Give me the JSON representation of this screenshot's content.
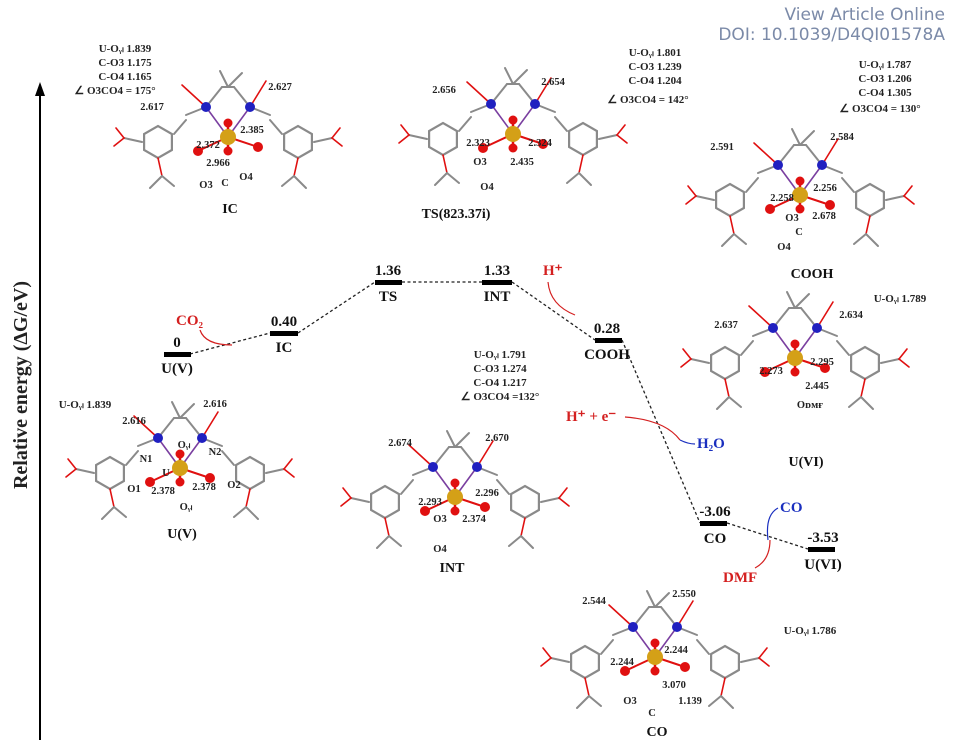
{
  "axis": {
    "ylabel": "Relative energy (ΔG/eV)"
  },
  "watermark": {
    "line1": "View Article Online",
    "line2": "DOI: 10.1039/D4QI01578A"
  },
  "levels": [
    {
      "name": "U(V)",
      "value": "0"
    },
    {
      "name": "IC",
      "value": "0.40"
    },
    {
      "name": "TS",
      "value": "1.36"
    },
    {
      "name": "INT",
      "value": "1.33"
    },
    {
      "name": "COOH",
      "value": "0.28"
    },
    {
      "name": "CO",
      "value": "-3.06"
    },
    {
      "name": "U(VI)",
      "value": "-3.53"
    }
  ],
  "annotations": {
    "co2": "CO₂",
    "h_plus": "H⁺",
    "h_plus_e": "H⁺ + e⁻",
    "h2o": "H₂O",
    "co": "CO",
    "dmf": "DMF"
  },
  "structures": {
    "ic": {
      "caption": "IC",
      "params": [
        "U-Oᵧₗ 1.839",
        "C-O3 1.175",
        "C-O4 1.165",
        "∠ O3CO4 = 175°"
      ],
      "labels": [
        "2.617",
        "2.627",
        "2.372",
        "2.385",
        "2.966",
        "O3",
        "C",
        "O4"
      ]
    },
    "ts": {
      "caption": "TS(823.37i)",
      "params": [
        "U-Oᵧₗ 1.801",
        "C-O3 1.239",
        "C-O4 1.204",
        "∠ O3CO4 = 142°"
      ],
      "labels": [
        "2.656",
        "2.654",
        "2.323",
        "2.324",
        "2.435",
        "O3",
        "O4"
      ]
    },
    "cooh": {
      "caption": "COOH",
      "params": [
        "U-Oᵧₗ 1.787",
        "C-O3 1.206",
        "C-O4 1.305",
        "∠ O3CO4 = 130°"
      ],
      "labels": [
        "2.591",
        "2.584",
        "2.258",
        "2.256",
        "2.678",
        "O3",
        "C",
        "O4"
      ]
    },
    "uvi": {
      "caption": "U(VI)",
      "params": [
        "U-Oᵧₗ 1.789"
      ],
      "labels": [
        "2.637",
        "2.634",
        "2.273",
        "2.295",
        "2.445",
        "Oᴅᴍғ"
      ]
    },
    "uv": {
      "caption": "U(V)",
      "params": [
        "U-Oᵧₗ 1.839"
      ],
      "labels": [
        "2.616",
        "2.616",
        "N1",
        "N2",
        "Oᵧₗ",
        "U",
        "O1",
        "O2",
        "2.378",
        "2.378",
        "Oᵧₗ"
      ]
    },
    "int": {
      "caption": "INT",
      "params": [
        "U-Oᵧₗ 1.791",
        "C-O3 1.274",
        "C-O4 1.217",
        "∠ O3CO4 =132°"
      ],
      "labels": [
        "2.674",
        "2.670",
        "2.293",
        "2.296",
        "2.374",
        "O3",
        "O4"
      ]
    },
    "co": {
      "caption": "CO",
      "params": [
        "U-Oᵧₗ 1.786"
      ],
      "labels": [
        "2.544",
        "2.550",
        "2.244",
        "2.244",
        "3.070",
        "1.139",
        "O3",
        "C"
      ]
    }
  },
  "colors": {
    "uranium": "#d4a017",
    "oxygen": "#e01010",
    "nitrogen": "#2020c0",
    "carbon": "#8a8a8a",
    "annotation_red": "#d42020",
    "annotation_blue": "#1a2fbf"
  }
}
